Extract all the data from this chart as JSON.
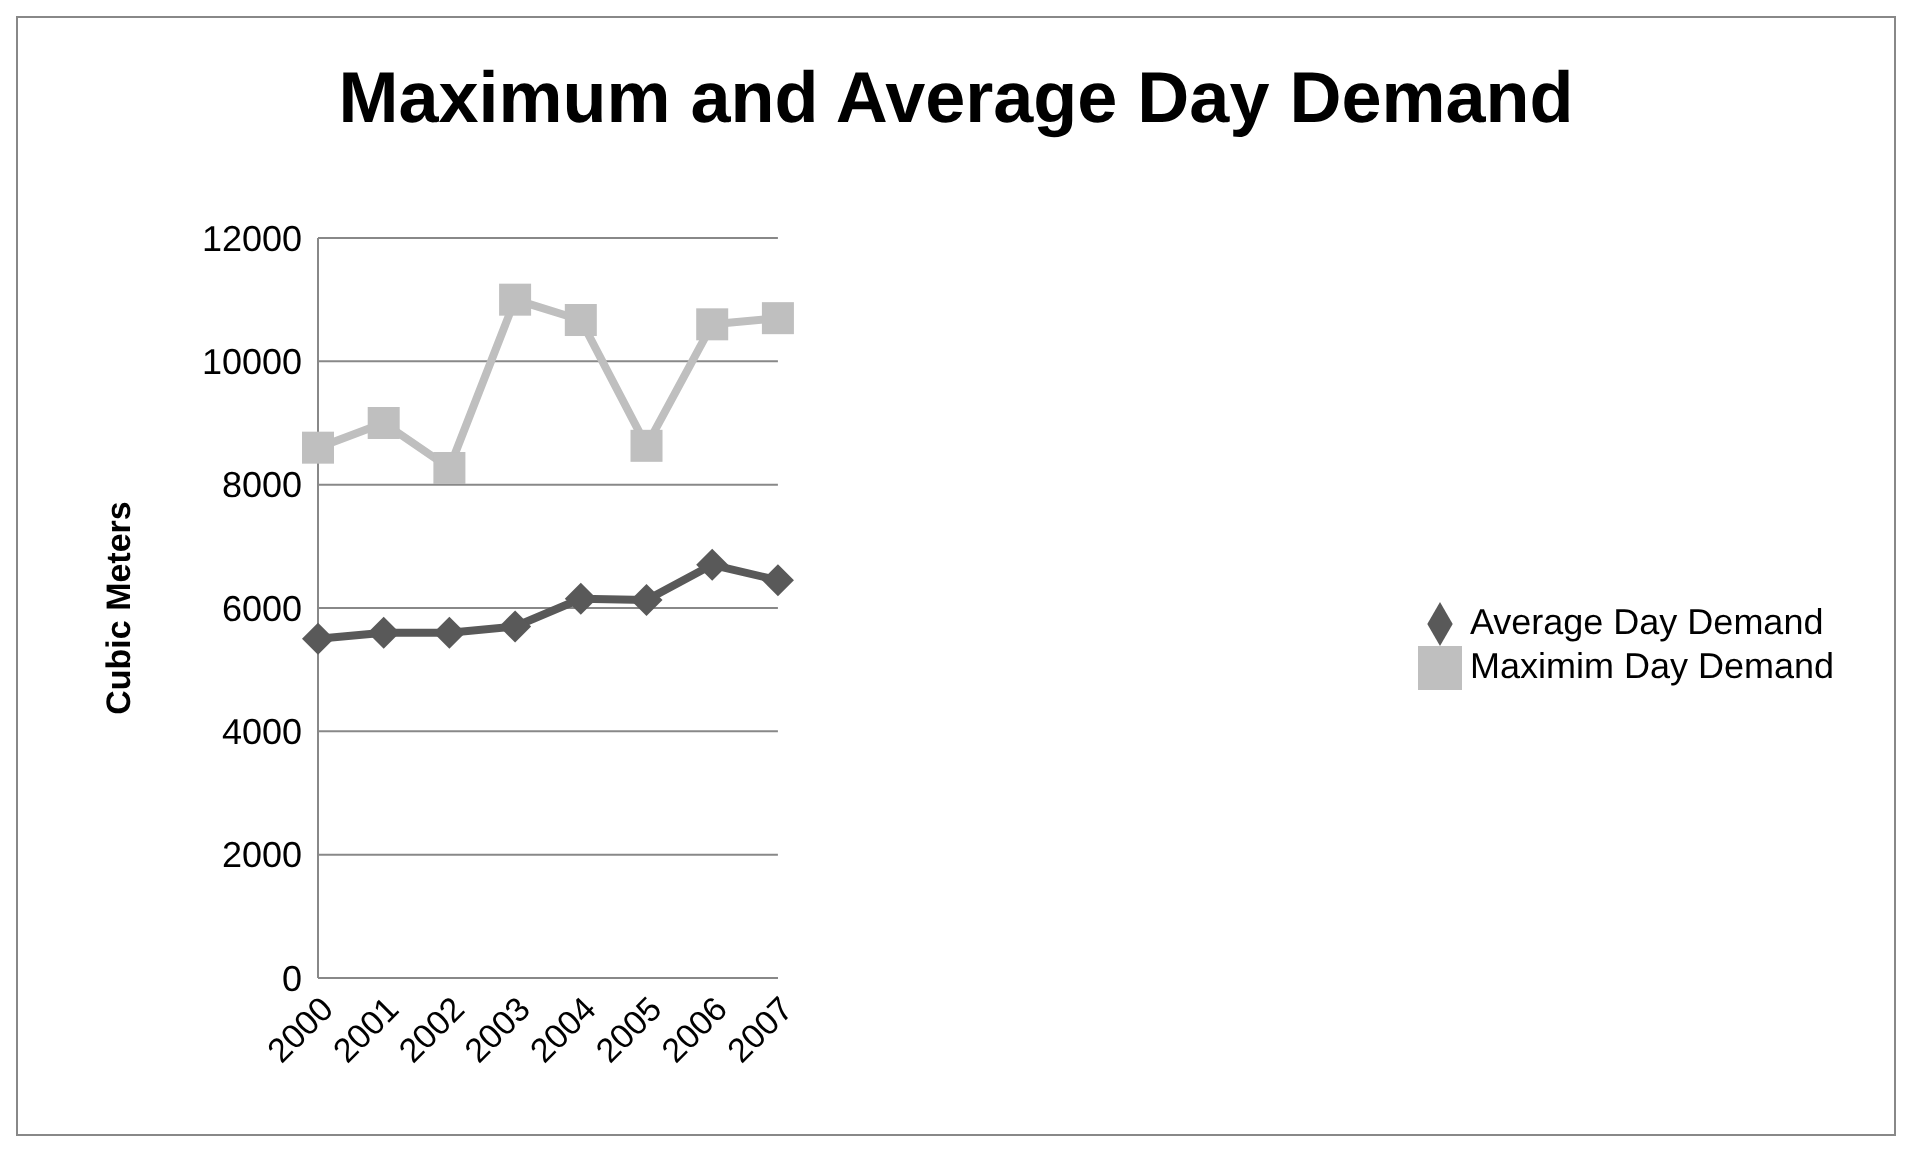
{
  "chart_data": {
    "type": "line",
    "title": "Maximum and Average Day Demand",
    "ylabel": "Cubic Meters",
    "categories": [
      "2000",
      "2001",
      "2002",
      "2003",
      "2004",
      "2005",
      "2006",
      "2007"
    ],
    "series": [
      {
        "name": "Average Day Demand",
        "color": "#595959",
        "marker": "diamond",
        "values": [
          5500,
          5600,
          5600,
          5700,
          6150,
          6130,
          6700,
          6450
        ]
      },
      {
        "name": "Maximim Day Demand",
        "color": "#bfbfbf",
        "marker": "square",
        "values": [
          8600,
          9000,
          8270,
          11000,
          10670,
          8630,
          10600,
          10700
        ]
      }
    ],
    "ylim": [
      0,
      12000
    ],
    "yticks": [
      0,
      2000,
      4000,
      6000,
      8000,
      10000,
      12000
    ],
    "grid": "y",
    "legend": "right",
    "line_style": "solid"
  }
}
